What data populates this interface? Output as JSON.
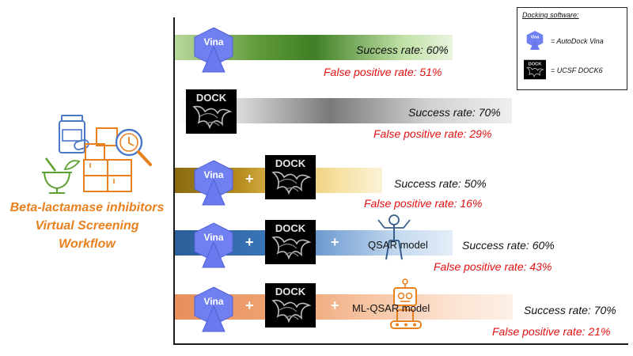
{
  "title": {
    "lines": [
      "Beta-lactamase inhibitors",
      "Virtual Screening",
      "Workflow"
    ]
  },
  "legend": {
    "title": "Docking software:",
    "vina": "= AutoDock Vina",
    "dock6": "= UCSF DOCK6"
  },
  "icons": {
    "vina_label": "Vina",
    "dock_label": "DOCK"
  },
  "rows": [
    {
      "tools": [
        "vina"
      ],
      "success": "Success rate: 60%",
      "fpr": "False positive rate: 51%",
      "color": "#5f9a3a"
    },
    {
      "tools": [
        "dock6"
      ],
      "success": "Success rate: 70%",
      "fpr": "False positive rate:  29%",
      "color": "#7a7a7a"
    },
    {
      "tools": [
        "vina",
        "dock6"
      ],
      "success": "Success rate: 50%",
      "fpr": "False positive rate: 16%",
      "color": "#b48a1c"
    },
    {
      "tools": [
        "vina",
        "dock6",
        "qsar"
      ],
      "model_label": "QSAR model",
      "success": "Success rate: 60%",
      "fpr": "False positive rate: 43%",
      "color": "#3a76b8"
    },
    {
      "tools": [
        "vina",
        "dock6",
        "ml-qsar"
      ],
      "model_label": "ML-QSAR model",
      "success": "Success rate: 70%",
      "fpr": "False positive rate: 21%",
      "color": "#f0a576"
    }
  ],
  "plus_sign": "+",
  "colors": {
    "accent_orange": "#e8801e",
    "fpr_red": "#e01010",
    "vina_blue": "#6f7ff0",
    "title_blue": "#4a78c8",
    "herb_green": "#5aa02c"
  }
}
